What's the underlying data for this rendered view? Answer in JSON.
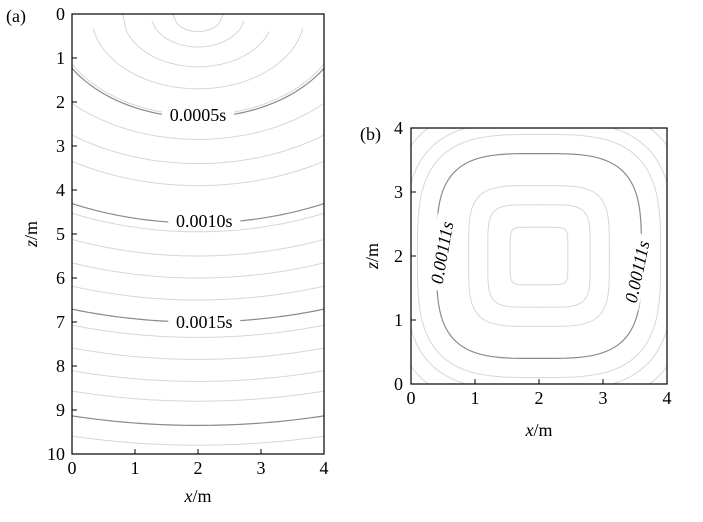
{
  "chart_data": [
    {
      "type": "contour",
      "panel_label": "(a)",
      "xlabel_var": "x",
      "xlabel_unit": "/m",
      "ylabel_var": "z",
      "ylabel_unit": "/m",
      "xlim": [
        0,
        4
      ],
      "ylim": [
        0,
        10
      ],
      "y_inverted": true,
      "x_ticks": [
        0,
        1,
        2,
        3,
        4
      ],
      "y_ticks": [
        0,
        1,
        2,
        3,
        4,
        5,
        6,
        7,
        8,
        9,
        10
      ],
      "source_point": [
        2,
        0
      ],
      "minor_levels_z_at_center": [
        0.4,
        0.75,
        1.2,
        1.7,
        2.3,
        2.85,
        3.4,
        3.9,
        4.95,
        5.5,
        6.0,
        6.5,
        7.35,
        7.85,
        8.35,
        8.8,
        9.8
      ],
      "labeled_levels": [
        {
          "label": "0.0005s",
          "z_at_center": 2.35,
          "label_x": 2.0,
          "label_z": 2.3
        },
        {
          "label": "0.0010s",
          "z_at_center": 4.75,
          "label_x": 2.1,
          "label_z": 4.7
        },
        {
          "label": "0.0015s",
          "z_at_center": 7.0,
          "label_x": 2.1,
          "label_z": 7.0
        }
      ],
      "unlabeled_major_levels_z_at_center": [
        9.35
      ]
    },
    {
      "type": "contour",
      "panel_label": "(b)",
      "xlabel_var": "x",
      "xlabel_unit": "/m",
      "ylabel_var": "z",
      "ylabel_unit": "/m",
      "xlim": [
        0,
        4
      ],
      "ylim": [
        0,
        4
      ],
      "x_ticks": [
        0,
        1,
        2,
        3,
        4
      ],
      "y_ticks": [
        0,
        1,
        2,
        3,
        4
      ],
      "center": [
        2,
        2
      ],
      "minor_half_widths": [
        0.45,
        0.8,
        1.1,
        1.9,
        2.1,
        2.35,
        2.6
      ],
      "labeled_level": {
        "label": "0.00111s",
        "half_width": 1.6
      },
      "label_positions": [
        {
          "x": 0.5,
          "z": 2.05,
          "side": "left"
        },
        {
          "x": 3.55,
          "z": 1.75,
          "side": "right"
        }
      ]
    }
  ]
}
